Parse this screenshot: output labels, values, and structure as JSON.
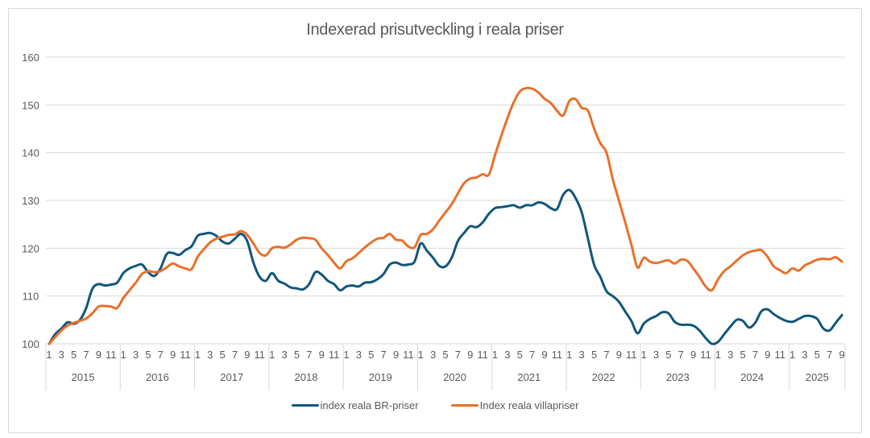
{
  "chart_data": {
    "type": "line",
    "title": "Indexerad prisutveckling i reala priser",
    "xlabel": "",
    "ylabel": "",
    "ylim": [
      100,
      160
    ],
    "yticks": [
      100,
      110,
      120,
      130,
      140,
      150,
      160
    ],
    "grid": true,
    "legend_position": "bottom",
    "years": [
      "2015",
      "2016",
      "2017",
      "2018",
      "2019",
      "2020",
      "2021",
      "2022",
      "2023",
      "2024",
      "2025"
    ],
    "month_tick_labels": [
      "1",
      "3",
      "5",
      "7",
      "9",
      "11"
    ],
    "months_in_last_year": 9,
    "start": "2015-01",
    "end": "2025-09",
    "series": [
      {
        "name": "index reala BR-priser",
        "color": "#10567a",
        "values": [
          100.0,
          102.0,
          103.2,
          104.5,
          104.2,
          105.0,
          107.5,
          111.5,
          112.5,
          112.2,
          112.4,
          112.8,
          114.8,
          115.8,
          116.3,
          116.6,
          115.0,
          114.2,
          115.8,
          118.8,
          119.0,
          118.6,
          119.6,
          120.4,
          122.6,
          123.0,
          123.2,
          122.6,
          121.4,
          121.0,
          122.0,
          123.0,
          121.5,
          117.0,
          114.0,
          113.2,
          114.8,
          113.2,
          112.6,
          111.8,
          111.6,
          111.4,
          112.5,
          115.0,
          114.5,
          113.2,
          112.5,
          111.2,
          112.0,
          112.2,
          112.0,
          112.8,
          112.9,
          113.5,
          114.6,
          116.6,
          117.0,
          116.5,
          116.6,
          117.2,
          121.0,
          119.5,
          118.0,
          116.3,
          116.2,
          118.0,
          121.5,
          123.2,
          124.6,
          124.4,
          125.4,
          127.2,
          128.4,
          128.6,
          128.8,
          129.0,
          128.5,
          129.0,
          129.0,
          129.6,
          129.3,
          128.4,
          128.2,
          131.2,
          132.2,
          130.5,
          127.5,
          122.0,
          116.5,
          114.0,
          111.0,
          110.0,
          108.8,
          106.8,
          104.8,
          102.2,
          104.2,
          105.2,
          105.8,
          106.6,
          106.4,
          104.6,
          104.0,
          104.0,
          103.8,
          102.8,
          101.2,
          100.0,
          100.4,
          102.0,
          103.6,
          105.0,
          104.8,
          103.4,
          104.4,
          106.8,
          107.2,
          106.2,
          105.4,
          104.8,
          104.6,
          105.2,
          105.8,
          105.8,
          105.2,
          103.2,
          102.8,
          104.4,
          106.0
        ]
      },
      {
        "name": "Index reala villapriser",
        "color": "#e8702a",
        "values": [
          100.0,
          101.4,
          102.8,
          103.8,
          104.4,
          104.8,
          105.3,
          106.4,
          107.8,
          107.9,
          107.8,
          107.5,
          109.6,
          111.2,
          112.8,
          114.6,
          115.2,
          115.0,
          115.2,
          116.0,
          116.8,
          116.2,
          115.8,
          115.6,
          118.2,
          119.8,
          121.2,
          122.0,
          122.4,
          122.8,
          122.9,
          123.6,
          122.8,
          121.0,
          119.0,
          118.5,
          120.0,
          120.3,
          120.1,
          120.8,
          121.8,
          122.2,
          122.1,
          121.8,
          120.0,
          118.6,
          117.0,
          115.8,
          117.3,
          117.9,
          119.0,
          120.2,
          121.2,
          122.0,
          122.2,
          123.0,
          121.8,
          121.6,
          120.4,
          120.2,
          122.8,
          123.0,
          124.0,
          125.8,
          127.5,
          129.2,
          131.5,
          133.6,
          134.6,
          134.8,
          135.5,
          135.4,
          139.5,
          143.5,
          147.2,
          150.5,
          152.8,
          153.5,
          153.4,
          152.6,
          151.3,
          150.4,
          148.8,
          147.8,
          150.8,
          151.2,
          149.4,
          148.8,
          145.0,
          142.0,
          140.0,
          134.5,
          130.0,
          125.5,
          120.8,
          116.0,
          118.0,
          117.2,
          116.9,
          117.2,
          117.5,
          116.8,
          117.6,
          117.4,
          115.8,
          114.0,
          112.0,
          111.2,
          113.5,
          115.2,
          116.2,
          117.4,
          118.5,
          119.2,
          119.5,
          119.6,
          118.2,
          116.2,
          115.4,
          114.8,
          115.8,
          115.3,
          116.4,
          117.0,
          117.6,
          117.8,
          117.7,
          118.1,
          117.2
        ]
      }
    ]
  }
}
